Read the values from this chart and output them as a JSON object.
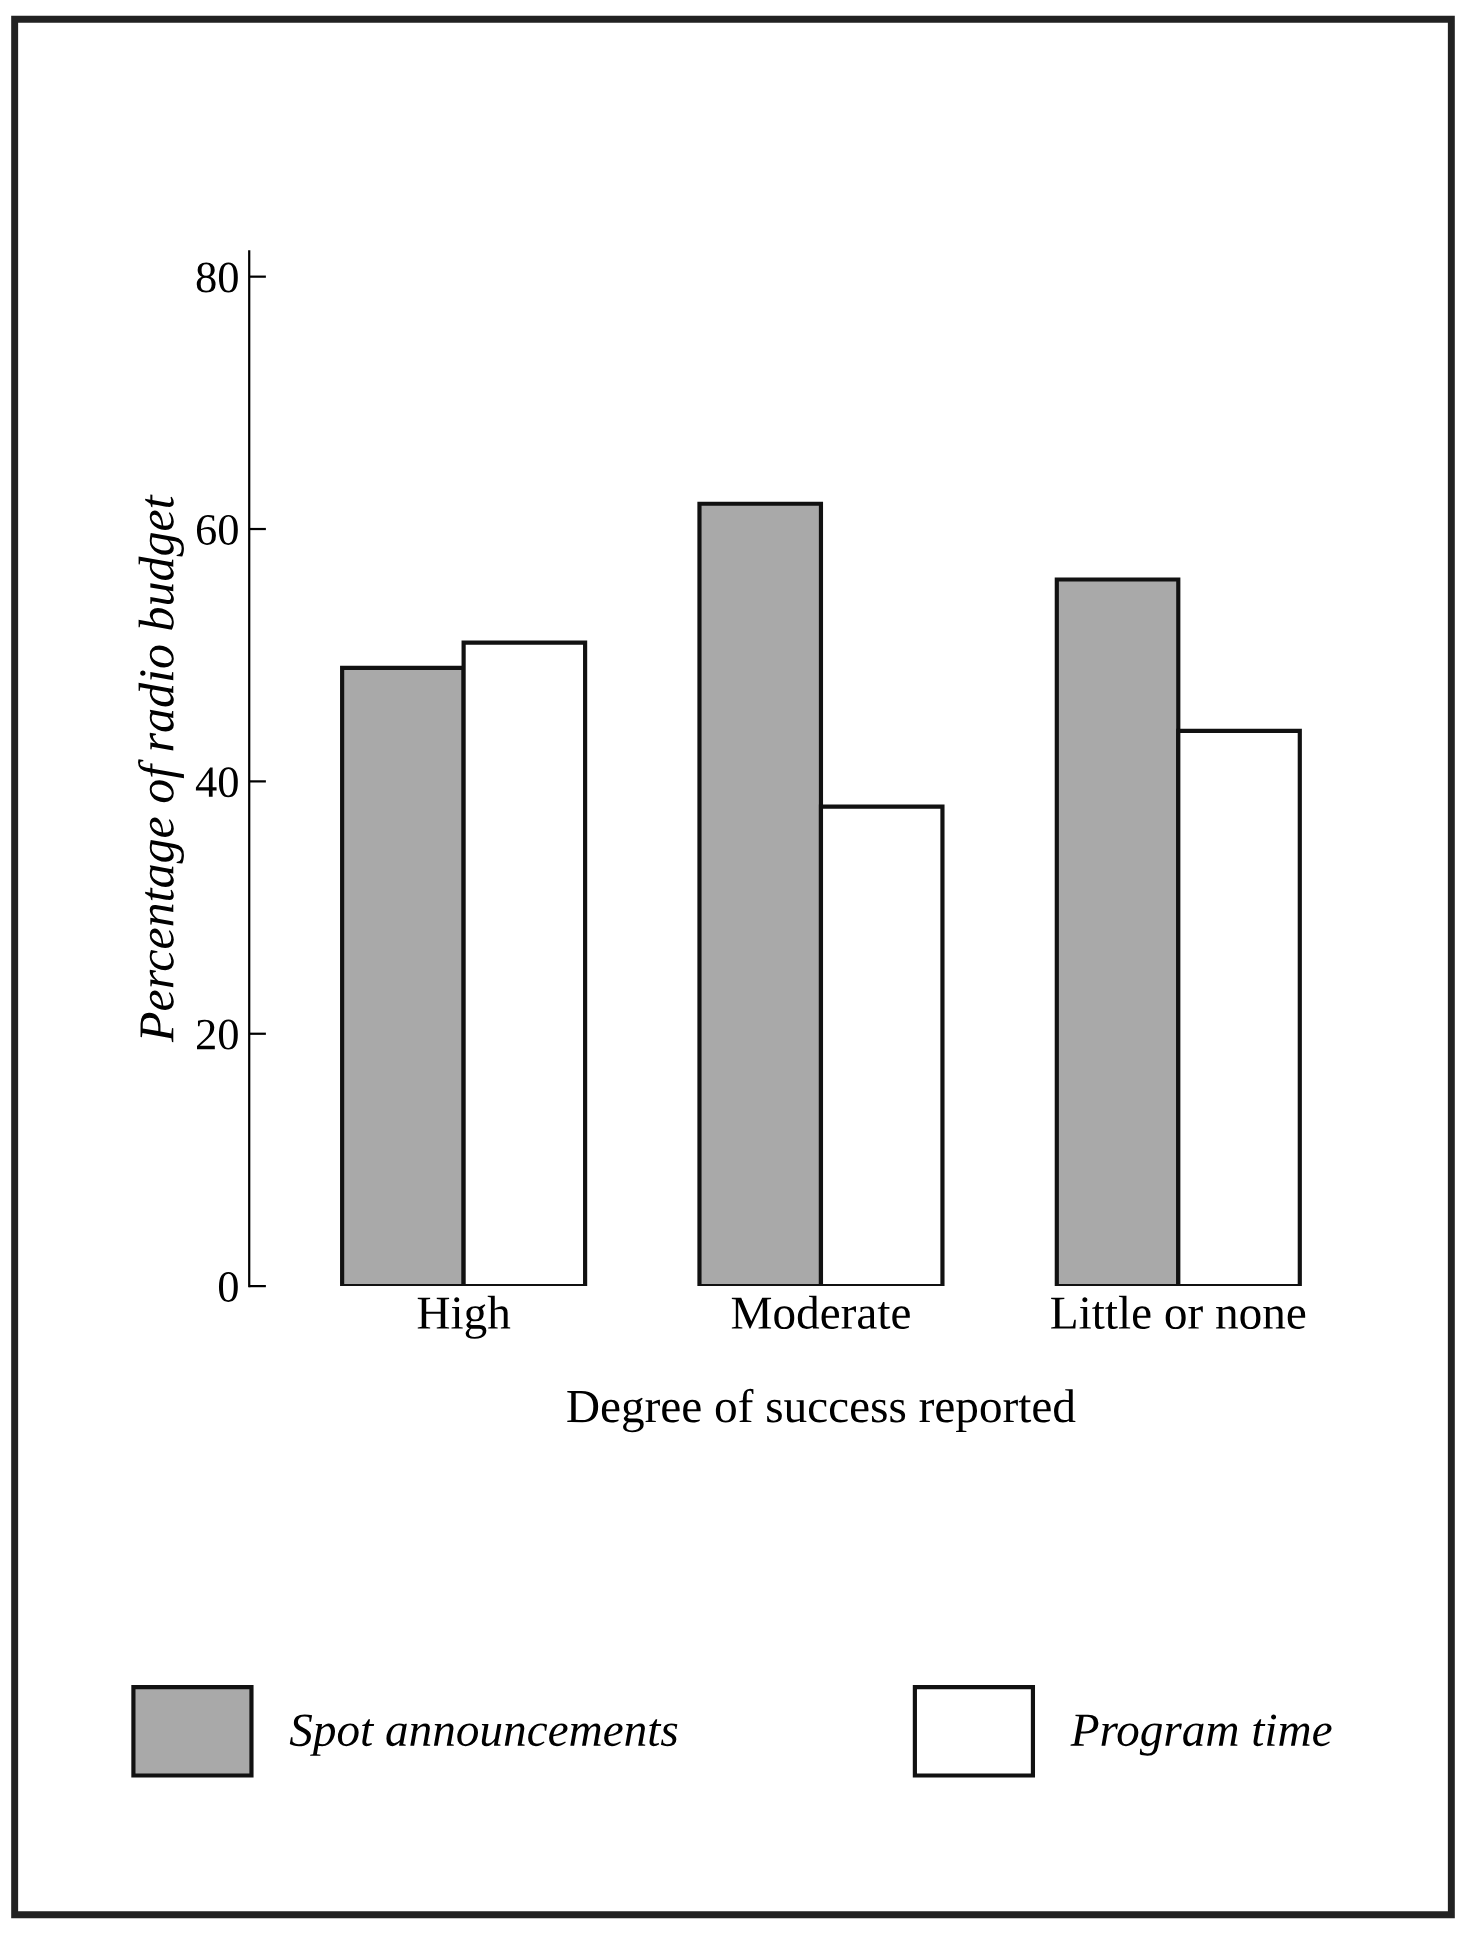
{
  "chart_data": {
    "type": "bar",
    "xlabel": "Degree of success reported",
    "ylabel": "Percentage of radio budget",
    "categories": [
      "High",
      "Moderate",
      "Little or none"
    ],
    "series": [
      {
        "name": "Spot announcements",
        "color": "#a9a9a9",
        "values": [
          49,
          62,
          56
        ]
      },
      {
        "name": "Program time",
        "color": "#ffffff",
        "values": [
          51,
          38,
          44
        ]
      }
    ],
    "ylim": [
      0,
      82
    ],
    "yticks": [
      0,
      20,
      40,
      60,
      80
    ],
    "grid": false,
    "legend": "bottom"
  }
}
